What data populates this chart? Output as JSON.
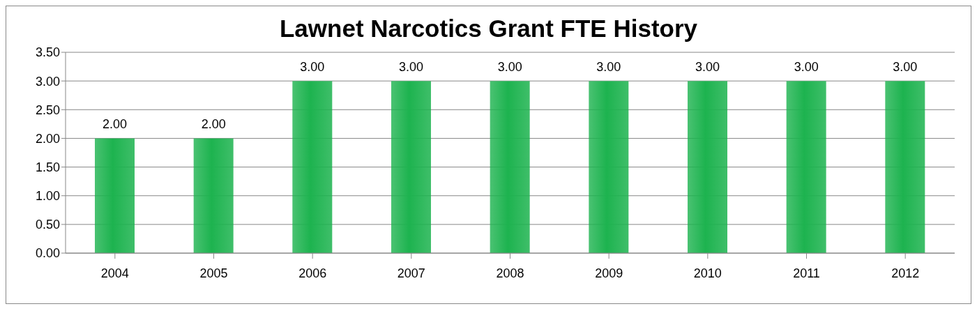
{
  "chart_data": {
    "type": "bar",
    "title": "Lawnet Narcotics Grant FTE History",
    "categories": [
      "2004",
      "2005",
      "2006",
      "2007",
      "2008",
      "2009",
      "2010",
      "2011",
      "2012"
    ],
    "values": [
      2,
      2,
      3,
      3,
      3,
      3,
      3,
      3,
      3
    ],
    "color": "#1db34f",
    "ylim": [
      0,
      3.5
    ],
    "yticks": [
      {
        "value": 0,
        "label": "0.00"
      },
      {
        "value": 0.5,
        "label": "0.50"
      },
      {
        "value": 1,
        "label": "1.00"
      },
      {
        "value": 1.5,
        "label": "1.50"
      },
      {
        "value": 2,
        "label": "2.00"
      },
      {
        "value": 2.5,
        "label": "2.50"
      },
      {
        "value": 3,
        "label": "3.00"
      },
      {
        "value": 3.5,
        "label": "3.50"
      }
    ],
    "grid": "y",
    "value_labels": [
      "2.00",
      "2.00",
      "3.00",
      "3.00",
      "3.00",
      "3.00",
      "3.00",
      "3.00",
      "3.00"
    ],
    "legend": false
  }
}
